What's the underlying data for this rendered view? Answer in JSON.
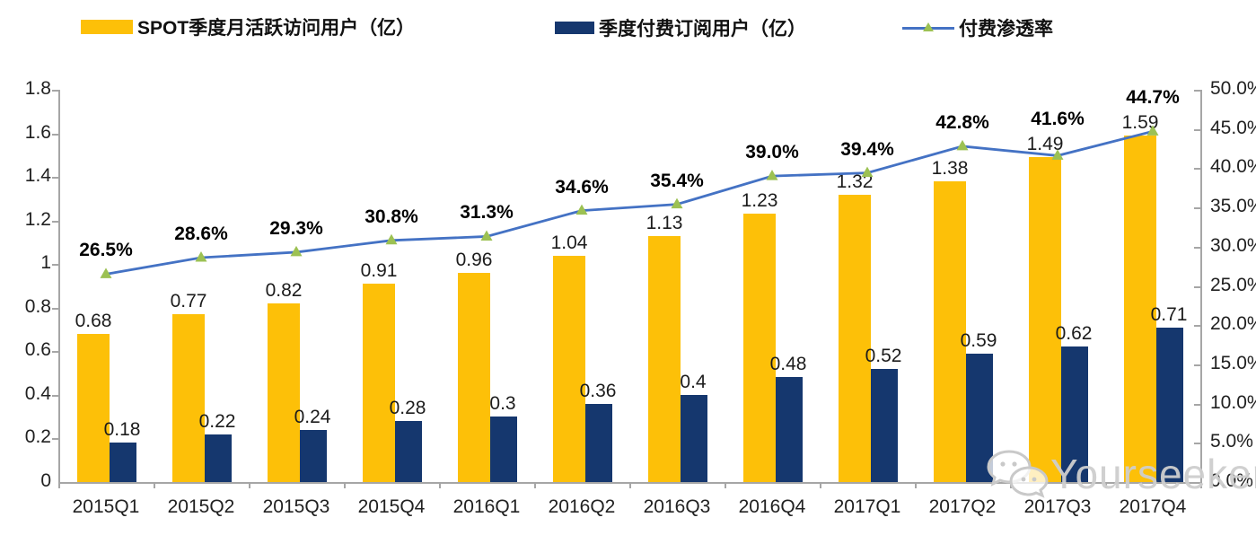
{
  "watermark": {
    "text": "Yourseeker",
    "icon": "wechat-icon"
  },
  "chart_data": {
    "type": "bar",
    "subtype": "grouped-bars-with-line-combo",
    "categories": [
      "2015Q1",
      "2015Q2",
      "2015Q3",
      "2015Q4",
      "2016Q1",
      "2016Q2",
      "2016Q3",
      "2016Q4",
      "2017Q1",
      "2017Q2",
      "2017Q3",
      "2017Q4"
    ],
    "series": [
      {
        "name": "SPOT季度月活跃访问用户（亿）",
        "type": "bar",
        "axis": "left",
        "color": "#FDC008",
        "values": [
          0.68,
          0.77,
          0.82,
          0.91,
          0.96,
          1.04,
          1.13,
          1.23,
          1.32,
          1.38,
          1.49,
          1.59
        ],
        "labels": [
          "0.68",
          "0.77",
          "0.82",
          "0.91",
          "0.96",
          "1.04",
          "1.13",
          "1.23",
          "1.32",
          "1.38",
          "1.49",
          "1.59"
        ]
      },
      {
        "name": "季度付费订阅用户（亿）",
        "type": "bar",
        "axis": "left",
        "color": "#15376E",
        "values": [
          0.18,
          0.22,
          0.24,
          0.28,
          0.3,
          0.36,
          0.4,
          0.48,
          0.52,
          0.59,
          0.62,
          0.71
        ],
        "labels": [
          "0.18",
          "0.22",
          "0.24",
          "0.28",
          "0.3",
          "0.36",
          "0.4",
          "0.48",
          "0.52",
          "0.59",
          "0.62",
          "0.71"
        ]
      },
      {
        "name": "付费渗透率",
        "type": "line",
        "axis": "right",
        "color": "#4472C4",
        "marker": "triangle",
        "marker_color": "#9CC153",
        "values": [
          26.5,
          28.6,
          29.3,
          30.8,
          31.3,
          34.6,
          35.4,
          39.0,
          39.4,
          42.8,
          41.6,
          44.7
        ],
        "labels": [
          "26.5%",
          "28.6%",
          "29.3%",
          "30.8%",
          "31.3%",
          "34.6%",
          "35.4%",
          "39.0%",
          "39.4%",
          "42.8%",
          "41.6%",
          "44.7%"
        ]
      }
    ],
    "left_axis": {
      "min": 0,
      "max": 1.8,
      "tick_labels": [
        "0",
        "0.2",
        "0.4",
        "0.6",
        "0.8",
        "1",
        "1.2",
        "1.4",
        "1.6",
        "1.8"
      ]
    },
    "right_axis": {
      "min": 0,
      "max": 50.0,
      "tick_labels": [
        "0.0%",
        "5.0%",
        "10.0%",
        "15.0%",
        "20.0%",
        "25.0%",
        "30.0%",
        "35.0%",
        "40.0%",
        "45.0%",
        "50.0%"
      ]
    },
    "grid": false,
    "legend_position": "top",
    "title": ""
  }
}
